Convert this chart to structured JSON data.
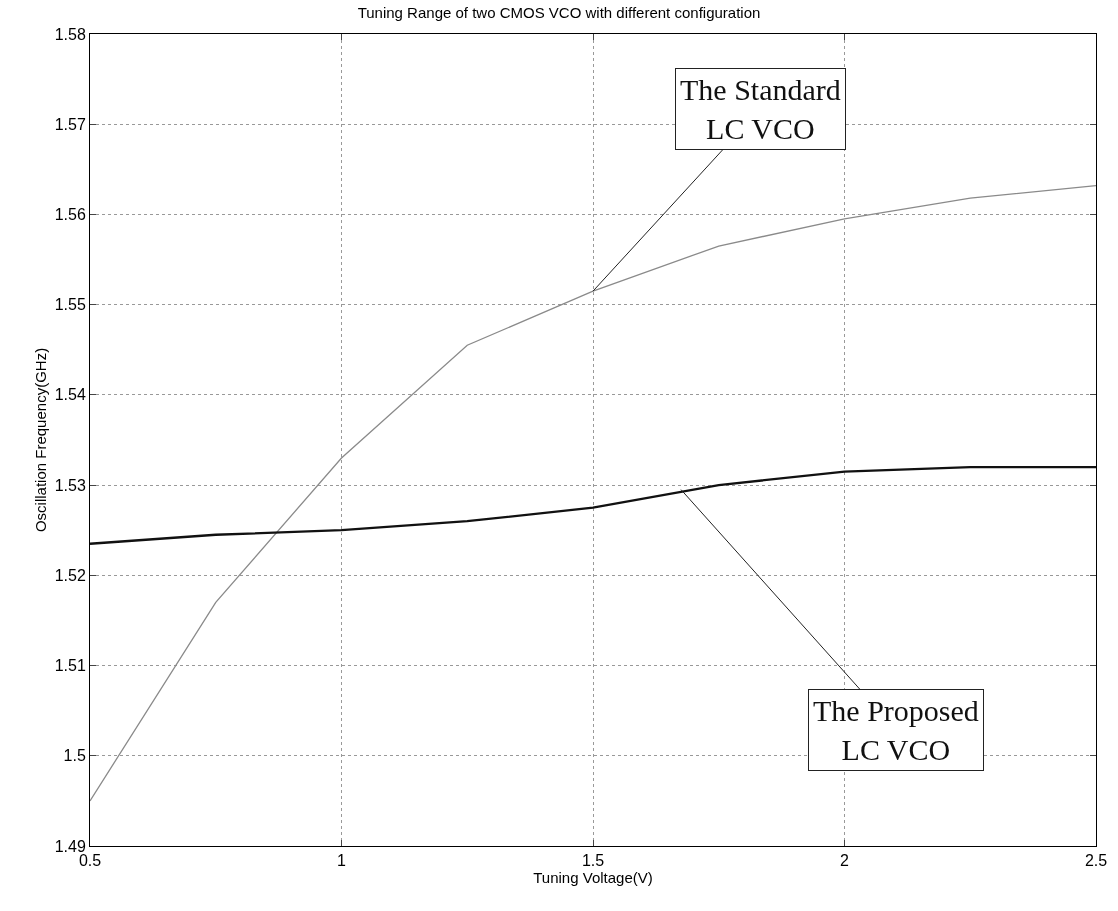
{
  "chart_data": {
    "type": "line",
    "title": "Tuning Range of two CMOS VCO with different configuration",
    "xlabel": "Tuning Voltage(V)",
    "ylabel": "Oscillation Frequency(GHz)",
    "x": [
      0.5,
      0.75,
      1,
      1.25,
      1.5,
      1.75,
      2,
      2.25,
      2.5
    ],
    "series": [
      {
        "color": "#8a8a8a",
        "values": [
          1.495,
          1.517,
          1.533,
          1.5455,
          1.5515,
          1.5565,
          1.5595,
          1.5618,
          1.5632
        ]
      },
      {
        "color": "#111111",
        "values": [
          1.5235,
          1.5245,
          1.525,
          1.526,
          1.5275,
          1.53,
          1.5315,
          1.532,
          1.532
        ]
      }
    ],
    "annotations": [
      {
        "text": "The Standard\nLC VCO",
        "x": 1.5,
        "y": 1.5515
      },
      {
        "text": "The Proposed\nLC VCO",
        "x": 1.675,
        "y": 1.5295
      }
    ],
    "xlim": [
      0.5,
      2.5
    ],
    "xticks": [
      0.5,
      1,
      1.5,
      2,
      2.5
    ],
    "ylim": [
      1.49,
      1.58
    ],
    "yticks": [
      1.49,
      1.5,
      1.51,
      1.52,
      1.53,
      1.54,
      1.55,
      1.56,
      1.57,
      1.58
    ],
    "grid": true,
    "legend": false,
    "marker": "none",
    "line_style": "solid"
  }
}
